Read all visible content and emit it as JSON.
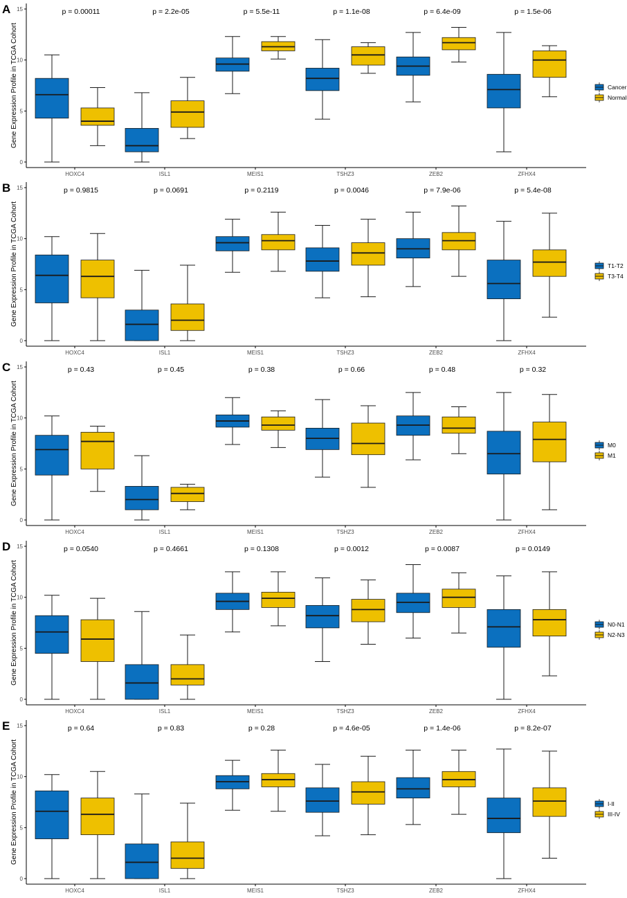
{
  "colors": {
    "groupA": "#0b70bf",
    "groupB": "#eec000",
    "stroke": "#1a1a1a",
    "axis": "#000000"
  },
  "chart_data": [
    {
      "type": "box",
      "panel_label": "A",
      "ylabel": "Gene Expression Profile in TCGA Cohort",
      "ylim": [
        0,
        15
      ],
      "yticks": [
        "0",
        "5",
        "10",
        "15"
      ],
      "categories": [
        "HOXC4",
        "ISL1",
        "MEIS1",
        "TSHZ3",
        "ZEB2",
        "ZFHX4"
      ],
      "pvalues": [
        "p = 0.00011",
        "p = 2.2e-05",
        "p = 5.5e-11",
        "p = 1.1e-08",
        "p = 6.4e-09",
        "p = 1.5e-06"
      ],
      "legend_position": "right",
      "series": [
        {
          "name": "Cancer",
          "boxes": [
            {
              "min": 0,
              "q1": 4.3,
              "median": 6.6,
              "q3": 8.2,
              "max": 10.5
            },
            {
              "min": 0,
              "q1": 1.0,
              "median": 1.6,
              "q3": 3.3,
              "max": 6.8
            },
            {
              "min": 6.7,
              "q1": 8.9,
              "median": 9.6,
              "q3": 10.2,
              "max": 12.3
            },
            {
              "min": 4.2,
              "q1": 7.0,
              "median": 8.2,
              "q3": 9.2,
              "max": 12.0
            },
            {
              "min": 5.9,
              "q1": 8.5,
              "median": 9.4,
              "q3": 10.3,
              "max": 12.7
            },
            {
              "min": 1.0,
              "q1": 5.3,
              "median": 7.1,
              "q3": 8.6,
              "max": 12.7
            }
          ]
        },
        {
          "name": "Normal",
          "boxes": [
            {
              "min": 1.6,
              "q1": 3.6,
              "median": 4.0,
              "q3": 5.3,
              "max": 7.3
            },
            {
              "min": 2.3,
              "q1": 3.4,
              "median": 4.9,
              "q3": 6.0,
              "max": 8.3
            },
            {
              "min": 10.1,
              "q1": 10.9,
              "median": 11.3,
              "q3": 11.8,
              "max": 12.3
            },
            {
              "min": 8.7,
              "q1": 9.5,
              "median": 10.5,
              "q3": 11.3,
              "max": 11.7
            },
            {
              "min": 9.8,
              "q1": 11.0,
              "median": 11.7,
              "q3": 12.2,
              "max": 13.2
            },
            {
              "min": 6.4,
              "q1": 8.3,
              "median": 10.0,
              "q3": 10.9,
              "max": 11.4
            }
          ]
        }
      ]
    },
    {
      "type": "box",
      "panel_label": "B",
      "ylabel": "Gene Expression Profile in TCGA Cohort",
      "ylim": [
        0,
        15
      ],
      "yticks": [
        "0",
        "5",
        "10",
        "15"
      ],
      "categories": [
        "HOXC4",
        "ISL1",
        "MEIS1",
        "TSHZ3",
        "ZEB2",
        "ZFHX4"
      ],
      "pvalues": [
        "p = 0.9815",
        "p = 0.0691",
        "p = 0.2119",
        "p = 0.0046",
        "p = 7.9e-06",
        "p = 5.4e-08"
      ],
      "legend_position": "right",
      "series": [
        {
          "name": "T1-T2",
          "boxes": [
            {
              "min": 0,
              "q1": 3.7,
              "median": 6.4,
              "q3": 8.4,
              "max": 10.2
            },
            {
              "min": 0,
              "q1": 0,
              "median": 1.6,
              "q3": 3.0,
              "max": 6.9
            },
            {
              "min": 6.7,
              "q1": 8.8,
              "median": 9.6,
              "q3": 10.2,
              "max": 11.9
            },
            {
              "min": 4.2,
              "q1": 6.8,
              "median": 7.8,
              "q3": 9.1,
              "max": 11.3
            },
            {
              "min": 5.3,
              "q1": 8.1,
              "median": 9.0,
              "q3": 10.0,
              "max": 12.6
            },
            {
              "min": 0,
              "q1": 4.1,
              "median": 5.6,
              "q3": 7.9,
              "max": 11.7
            }
          ]
        },
        {
          "name": "T3-T4",
          "boxes": [
            {
              "min": 0,
              "q1": 4.2,
              "median": 6.3,
              "q3": 7.9,
              "max": 10.5
            },
            {
              "min": 0,
              "q1": 1.0,
              "median": 2.0,
              "q3": 3.6,
              "max": 7.4
            },
            {
              "min": 6.8,
              "q1": 8.9,
              "median": 9.8,
              "q3": 10.4,
              "max": 12.6
            },
            {
              "min": 4.3,
              "q1": 7.4,
              "median": 8.6,
              "q3": 9.6,
              "max": 11.9
            },
            {
              "min": 6.3,
              "q1": 8.9,
              "median": 9.8,
              "q3": 10.6,
              "max": 13.2
            },
            {
              "min": 2.3,
              "q1": 6.3,
              "median": 7.7,
              "q3": 8.9,
              "max": 12.5
            }
          ]
        }
      ]
    },
    {
      "type": "box",
      "panel_label": "C",
      "ylabel": "Gene Expression Profile in TCGA Cohort",
      "ylim": [
        0,
        15
      ],
      "yticks": [
        "0",
        "5",
        "10",
        "15"
      ],
      "categories": [
        "HOXC4",
        "ISL1",
        "MEIS1",
        "TSHZ3",
        "ZEB2",
        "ZFHX4"
      ],
      "pvalues": [
        "p = 0.43",
        "p = 0.45",
        "p = 0.38",
        "p = 0.66",
        "p = 0.48",
        "p = 0.32"
      ],
      "legend_position": "right",
      "series": [
        {
          "name": "M0",
          "boxes": [
            {
              "min": 0,
              "q1": 4.4,
              "median": 6.9,
              "q3": 8.3,
              "max": 10.2
            },
            {
              "min": 0,
              "q1": 1.0,
              "median": 2.0,
              "q3": 3.3,
              "max": 6.3
            },
            {
              "min": 7.4,
              "q1": 9.1,
              "median": 9.7,
              "q3": 10.3,
              "max": 12.0
            },
            {
              "min": 4.2,
              "q1": 6.9,
              "median": 8.0,
              "q3": 9.0,
              "max": 11.8
            },
            {
              "min": 5.9,
              "q1": 8.3,
              "median": 9.3,
              "q3": 10.2,
              "max": 12.5
            },
            {
              "min": 0,
              "q1": 4.5,
              "median": 6.5,
              "q3": 8.7,
              "max": 12.5
            }
          ]
        },
        {
          "name": "M1",
          "boxes": [
            {
              "min": 2.8,
              "q1": 5.0,
              "median": 7.7,
              "q3": 8.6,
              "max": 9.2
            },
            {
              "min": 1.0,
              "q1": 1.8,
              "median": 2.6,
              "q3": 3.2,
              "max": 3.5
            },
            {
              "min": 7.1,
              "q1": 8.8,
              "median": 9.3,
              "q3": 10.1,
              "max": 10.7
            },
            {
              "min": 3.2,
              "q1": 6.4,
              "median": 7.5,
              "q3": 9.5,
              "max": 11.2
            },
            {
              "min": 6.5,
              "q1": 8.5,
              "median": 9.0,
              "q3": 10.1,
              "max": 11.1
            },
            {
              "min": 1.0,
              "q1": 5.7,
              "median": 7.9,
              "q3": 9.6,
              "max": 12.3
            }
          ]
        }
      ]
    },
    {
      "type": "box",
      "panel_label": "D",
      "ylabel": "Gene Expression Profile in TCGA Cohort",
      "ylim": [
        0,
        15
      ],
      "yticks": [
        "0",
        "5",
        "10",
        "15"
      ],
      "categories": [
        "HOXC4",
        "ISL1",
        "MEIS1",
        "TSHZ3",
        "ZEB2",
        "ZFHX4"
      ],
      "pvalues": [
        "p = 0.0540",
        "p = 0.4661",
        "p = 0.1308",
        "p = 0.0012",
        "p = 0.0087",
        "p = 0.0149"
      ],
      "legend_position": "right",
      "series": [
        {
          "name": "N0-N1",
          "boxes": [
            {
              "min": 0,
              "q1": 4.5,
              "median": 6.6,
              "q3": 8.2,
              "max": 10.2
            },
            {
              "min": 0,
              "q1": 0,
              "median": 1.6,
              "q3": 3.4,
              "max": 8.6
            },
            {
              "min": 6.6,
              "q1": 8.8,
              "median": 9.6,
              "q3": 10.4,
              "max": 12.5
            },
            {
              "min": 3.7,
              "q1": 7.0,
              "median": 8.2,
              "q3": 9.2,
              "max": 11.9
            },
            {
              "min": 6.0,
              "q1": 8.5,
              "median": 9.5,
              "q3": 10.4,
              "max": 13.2
            },
            {
              "min": 0,
              "q1": 5.1,
              "median": 7.1,
              "q3": 8.8,
              "max": 12.1
            }
          ]
        },
        {
          "name": "N2-N3",
          "boxes": [
            {
              "min": 0,
              "q1": 3.7,
              "median": 5.9,
              "q3": 7.8,
              "max": 9.9
            },
            {
              "min": 0,
              "q1": 1.4,
              "median": 2.0,
              "q3": 3.4,
              "max": 6.3
            },
            {
              "min": 7.2,
              "q1": 9.0,
              "median": 9.9,
              "q3": 10.5,
              "max": 12.5
            },
            {
              "min": 5.4,
              "q1": 7.6,
              "median": 8.8,
              "q3": 9.8,
              "max": 11.7
            },
            {
              "min": 6.5,
              "q1": 9.0,
              "median": 10.0,
              "q3": 10.8,
              "max": 12.4
            },
            {
              "min": 2.3,
              "q1": 6.2,
              "median": 7.8,
              "q3": 8.8,
              "max": 12.5
            }
          ]
        }
      ]
    },
    {
      "type": "box",
      "panel_label": "E",
      "ylabel": "Gene Expression Profile in TCGA Cohort",
      "ylim": [
        0,
        15
      ],
      "yticks": [
        "0",
        "5",
        "10",
        "15"
      ],
      "categories": [
        "HOXC4",
        "ISL1",
        "MEIS1",
        "TSHZ3",
        "ZEB2",
        "ZFHX4"
      ],
      "pvalues": [
        "p = 0.64",
        "p = 0.83",
        "p = 0.28",
        "p = 4.6e-05",
        "p = 1.4e-06",
        "p = 8.2e-07"
      ],
      "legend_position": "right",
      "series": [
        {
          "name": "I-II",
          "boxes": [
            {
              "min": 0,
              "q1": 3.9,
              "median": 6.6,
              "q3": 8.6,
              "max": 10.2
            },
            {
              "min": 0,
              "q1": 0,
              "median": 1.6,
              "q3": 3.4,
              "max": 8.3
            },
            {
              "min": 6.7,
              "q1": 8.8,
              "median": 9.5,
              "q3": 10.1,
              "max": 11.6
            },
            {
              "min": 4.2,
              "q1": 6.5,
              "median": 7.6,
              "q3": 8.9,
              "max": 11.2
            },
            {
              "min": 5.3,
              "q1": 7.9,
              "median": 8.8,
              "q3": 9.9,
              "max": 12.6
            },
            {
              "min": 0,
              "q1": 4.5,
              "median": 5.9,
              "q3": 7.9,
              "max": 12.7
            }
          ]
        },
        {
          "name": "III-IV",
          "boxes": [
            {
              "min": 0,
              "q1": 4.3,
              "median": 6.3,
              "q3": 7.9,
              "max": 10.5
            },
            {
              "min": 0,
              "q1": 1.0,
              "median": 2.0,
              "q3": 3.6,
              "max": 7.4
            },
            {
              "min": 6.6,
              "q1": 9.0,
              "median": 9.7,
              "q3": 10.3,
              "max": 12.6
            },
            {
              "min": 4.3,
              "q1": 7.3,
              "median": 8.5,
              "q3": 9.5,
              "max": 12.0
            },
            {
              "min": 6.3,
              "q1": 9.0,
              "median": 9.7,
              "q3": 10.5,
              "max": 12.6
            },
            {
              "min": 2.0,
              "q1": 6.1,
              "median": 7.6,
              "q3": 8.9,
              "max": 12.5
            }
          ]
        }
      ]
    }
  ]
}
